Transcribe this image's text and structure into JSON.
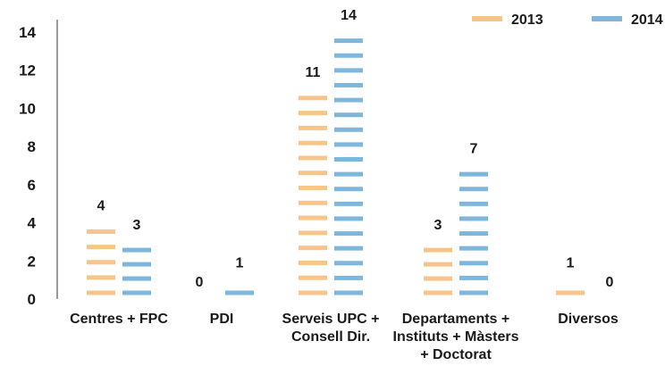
{
  "chart_data": {
    "type": "bar",
    "categories": [
      [
        "Centres + FPC"
      ],
      [
        "PDI"
      ],
      [
        "Serveis UPC +",
        "Consell Dir."
      ],
      [
        "Departaments +",
        "Instituts + Màsters",
        "+ Doctorat"
      ],
      [
        "Diversos"
      ]
    ],
    "series": [
      {
        "name": "2013",
        "values": [
          4,
          0,
          11,
          3,
          1
        ],
        "color": "#f7c48a"
      },
      {
        "name": "2014",
        "values": [
          3,
          1,
          14,
          7,
          0
        ],
        "color": "#7fb6dc"
      }
    ],
    "y_ticks": [
      "0",
      "2",
      "4",
      "6",
      "8",
      "10",
      "12",
      "14"
    ],
    "ylim": [
      0,
      14
    ],
    "legend_position": "top-right",
    "grid": false
  }
}
